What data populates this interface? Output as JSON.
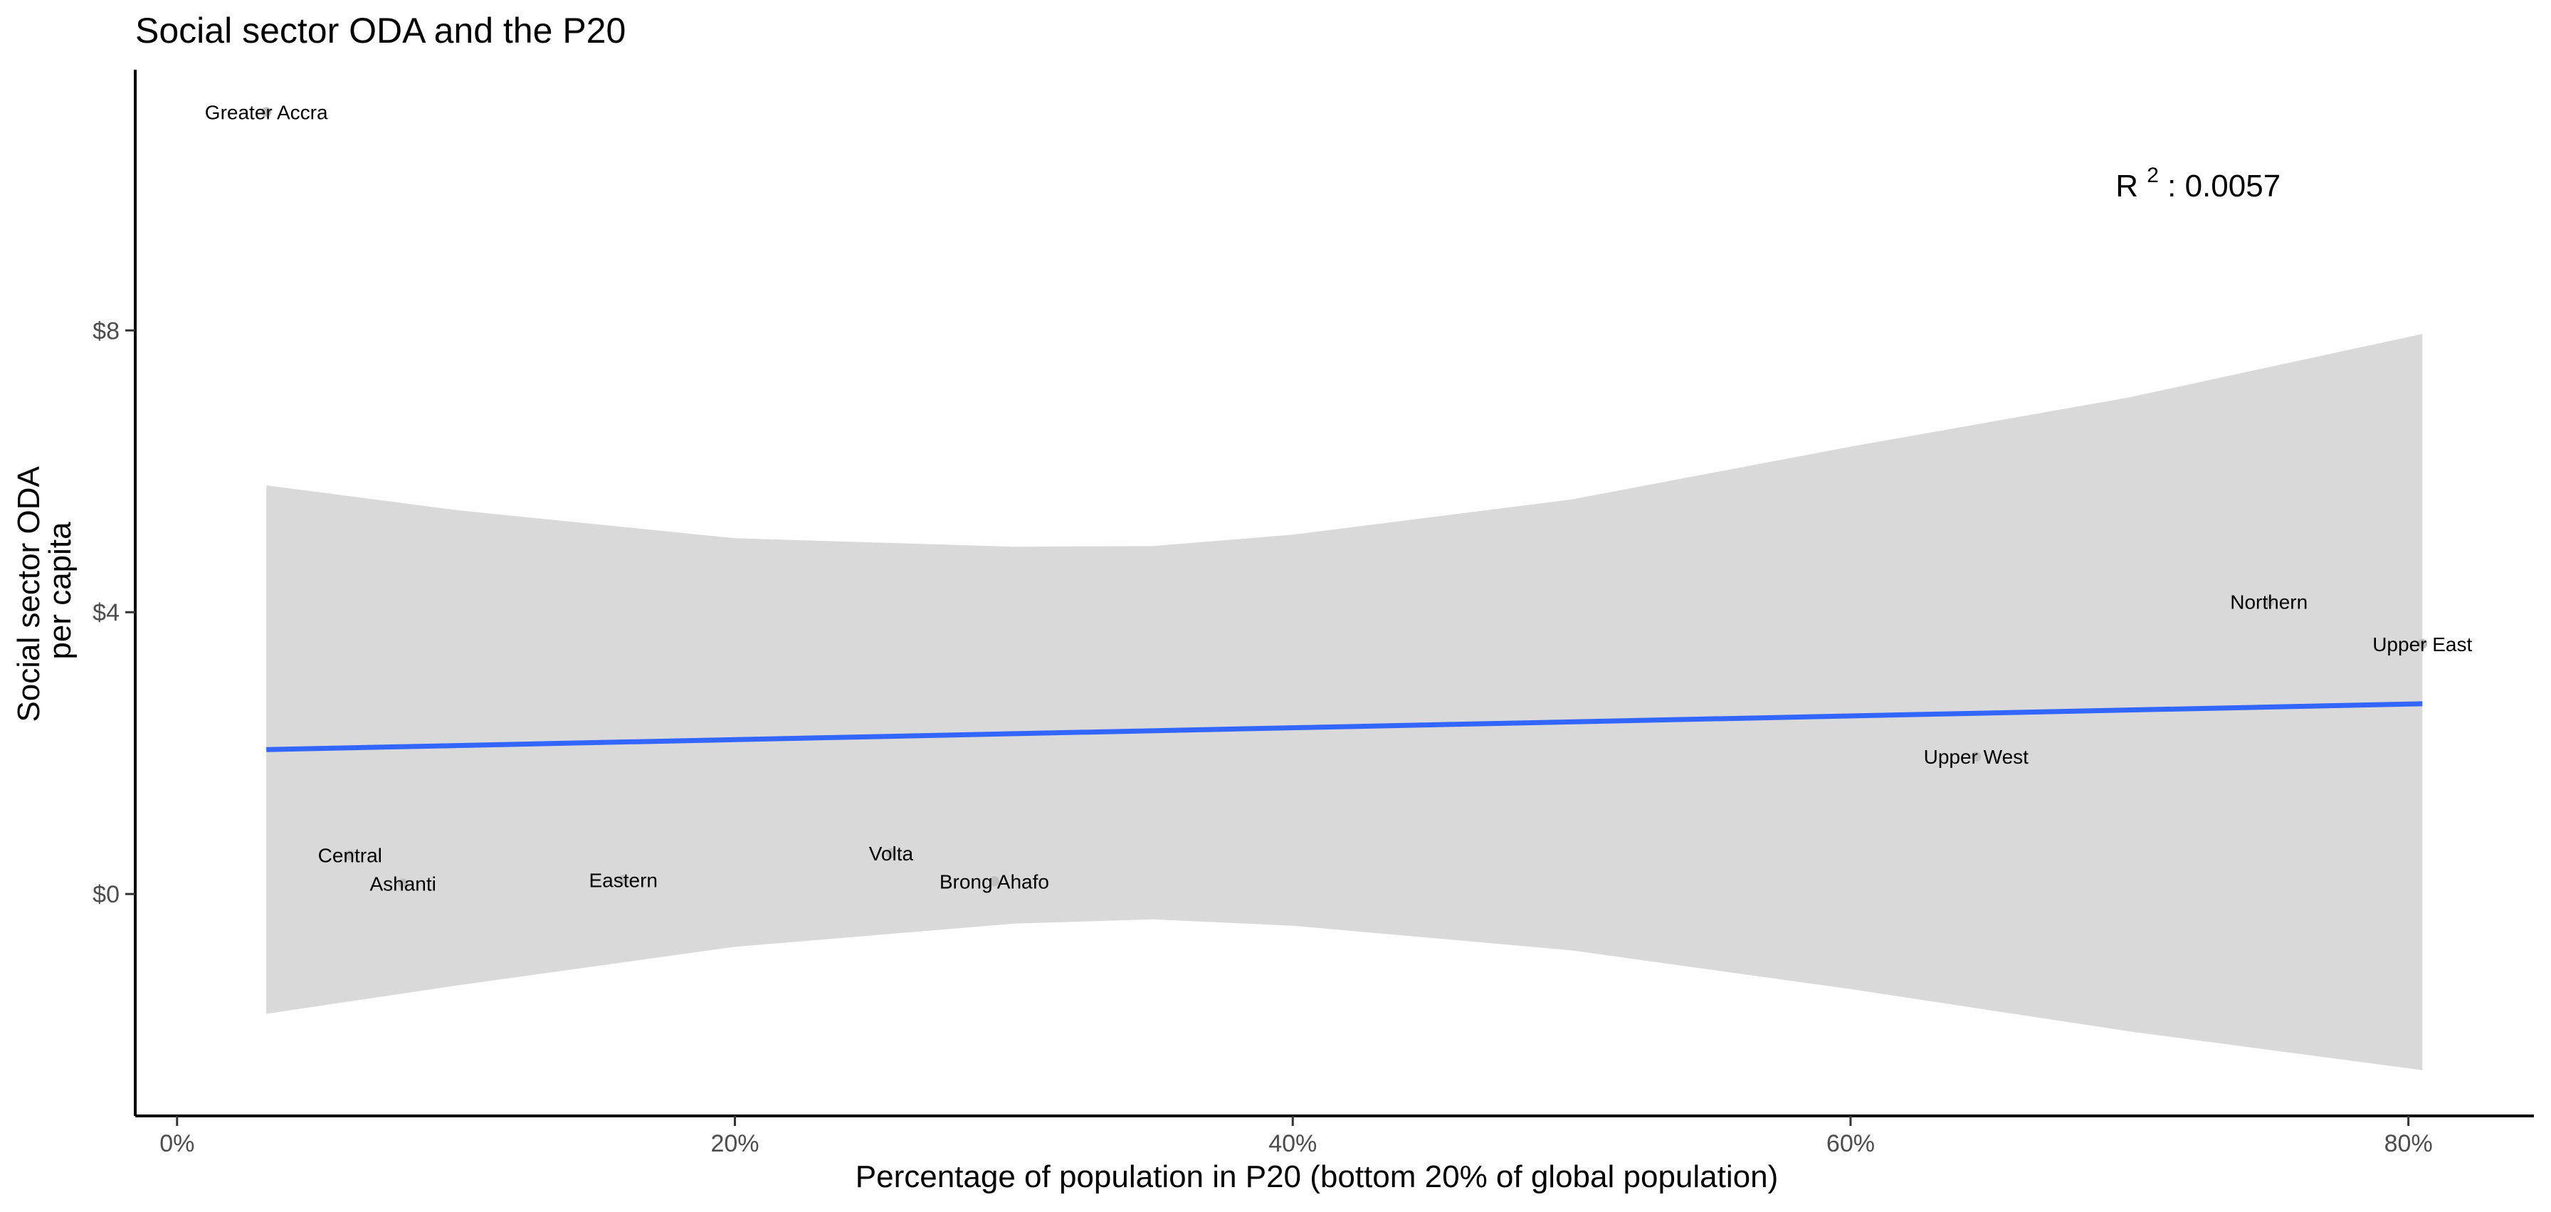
{
  "chart_data": {
    "type": "scatter",
    "title": "Social sector ODA and the P20",
    "xlabel": "Percentage of population in P20 (bottom 20% of global population)",
    "ylabel_lines": [
      "Social sector ODA",
      "per capita"
    ],
    "xlim": [
      -0.015,
      0.845
    ],
    "ylim": [
      -3.15,
      11.7
    ],
    "x_ticks": [
      {
        "value": 0.0,
        "label": "0%"
      },
      {
        "value": 0.2,
        "label": "20%"
      },
      {
        "value": 0.4,
        "label": "40%"
      },
      {
        "value": 0.6,
        "label": "60%"
      },
      {
        "value": 0.8,
        "label": "80%"
      }
    ],
    "y_ticks": [
      {
        "value": 0,
        "label": "$0"
      },
      {
        "value": 4,
        "label": "$4"
      },
      {
        "value": 8,
        "label": "$8"
      }
    ],
    "points": [
      {
        "label": "Greater Accra",
        "x": 0.032,
        "y": 11.1
      },
      {
        "label": "Central",
        "x": 0.062,
        "y": 0.55
      },
      {
        "label": "Ashanti",
        "x": 0.081,
        "y": 0.15
      },
      {
        "label": "Eastern",
        "x": 0.16,
        "y": 0.2
      },
      {
        "label": "Volta",
        "x": 0.256,
        "y": 0.58
      },
      {
        "label": "Brong Ahafo",
        "x": 0.293,
        "y": 0.18
      },
      {
        "label": "Upper West",
        "x": 0.645,
        "y": 1.95
      },
      {
        "label": "Northern",
        "x": 0.75,
        "y": 4.15
      },
      {
        "label": "Upper East",
        "x": 0.805,
        "y": 3.55
      }
    ],
    "regression": {
      "x": [
        0.032,
        0.805
      ],
      "y": [
        2.05,
        2.7
      ],
      "color": "#3366ff"
    },
    "confidence_band": {
      "color": "#d9d9d9",
      "x": [
        0.032,
        0.1,
        0.2,
        0.3,
        0.35,
        0.4,
        0.5,
        0.6,
        0.7,
        0.805
      ],
      "upper": [
        5.8,
        5.45,
        5.05,
        4.93,
        4.94,
        5.1,
        5.6,
        6.35,
        7.05,
        7.95
      ],
      "lower": [
        -1.7,
        -1.3,
        -0.75,
        -0.42,
        -0.36,
        -0.45,
        -0.8,
        -1.35,
        -1.95,
        -2.5
      ]
    },
    "annotation": {
      "base": "R",
      "superscript": "2",
      "text": ": 0.0057",
      "x": 0.695,
      "y": 9.9
    },
    "grid": false,
    "legend": "none"
  }
}
